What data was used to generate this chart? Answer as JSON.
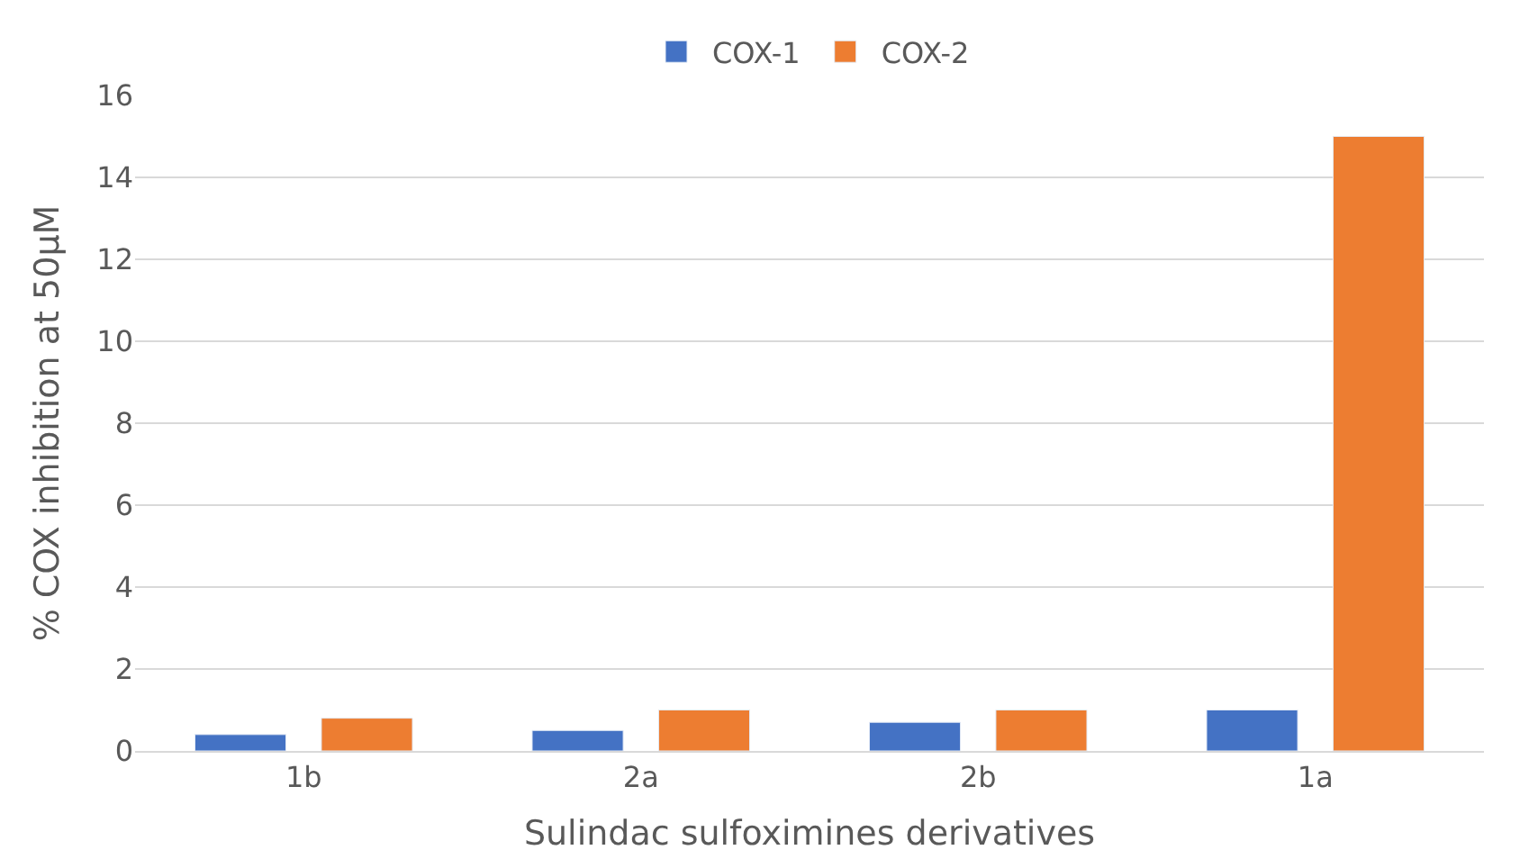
{
  "chart_data": {
    "type": "bar",
    "xlabel": "Sulindac sulfoximines derivatives",
    "ylabel": "% COX inhibition at 50μM",
    "categories": [
      "1b",
      "2a",
      "2b",
      "1a"
    ],
    "series": [
      {
        "name": "COX-1",
        "color": "#4472c4",
        "values": [
          0.4,
          0.5,
          0.7,
          1.0
        ]
      },
      {
        "name": "COX-2",
        "color": "#ed7d31",
        "values": [
          0.8,
          1.0,
          1.0,
          15.0
        ]
      }
    ],
    "ylim": [
      0,
      16
    ],
    "yticks": [
      0,
      2,
      4,
      6,
      8,
      10,
      12,
      14,
      16
    ],
    "grid": "y",
    "legend": "top"
  }
}
